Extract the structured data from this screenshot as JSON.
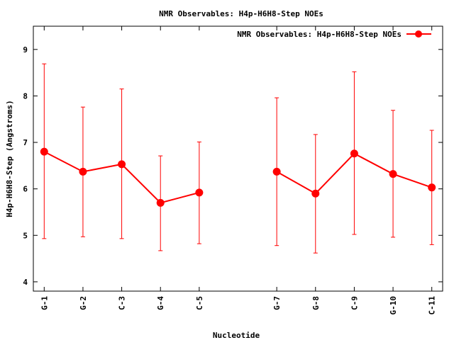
{
  "chart_data": {
    "type": "line",
    "title": "NMR Observables: H4p-H6H8-Step NOEs",
    "xlabel": "Nucleotide",
    "ylabel": "H4p-H6H8-Step (Angstroms)",
    "ylim": [
      3.8,
      9.5
    ],
    "yticks": [
      4,
      5,
      6,
      7,
      8,
      9
    ],
    "grid": false,
    "legend_position": "top-right",
    "categories": [
      "G-1",
      "G-2",
      "C-3",
      "G-4",
      "C-5",
      "G-7",
      "G-8",
      "C-9",
      "G-10",
      "C-11"
    ],
    "x": [
      1,
      2,
      3,
      4,
      5,
      7,
      8,
      9,
      10,
      11
    ],
    "xlim": [
      0.72,
      11.28
    ],
    "series": [
      {
        "name": "NMR Observables: H4p-H6H8-Step NOEs",
        "color": "#ff0000",
        "values": [
          6.8,
          6.37,
          6.53,
          5.7,
          5.92,
          6.37,
          5.9,
          6.76,
          6.32,
          6.03
        ],
        "error_low": [
          4.93,
          4.97,
          4.93,
          4.67,
          4.82,
          4.78,
          4.62,
          5.02,
          4.96,
          4.8
        ],
        "error_high": [
          8.69,
          7.76,
          8.15,
          6.71,
          7.01,
          7.96,
          7.17,
          8.52,
          7.69,
          7.26
        ],
        "segments": [
          [
            0,
            4
          ],
          [
            5,
            9
          ]
        ]
      }
    ]
  }
}
